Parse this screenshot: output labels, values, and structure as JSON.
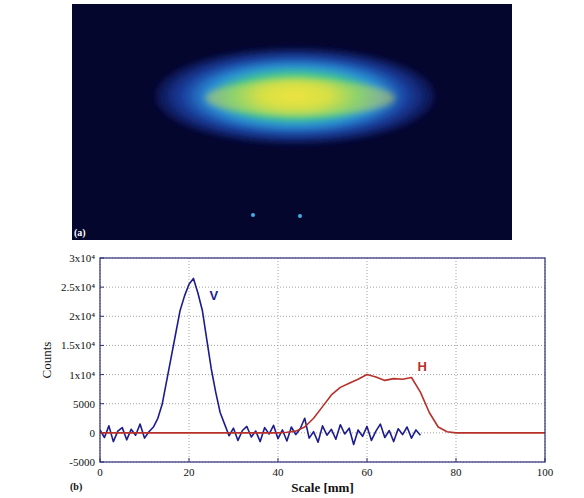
{
  "chart_data": {
    "type": "line",
    "xlabel": "Scale [mm]",
    "ylabel": "Counts",
    "annotations": [
      "(a)",
      "(b)"
    ],
    "xlim": [
      0,
      100
    ],
    "xticks": [
      0,
      20,
      40,
      60,
      80,
      100
    ],
    "ylim": [
      -5000,
      30000
    ],
    "yticks": [
      -5000,
      0,
      5000,
      {
        "value": 10000,
        "label": "1x10⁴"
      },
      {
        "value": 15000,
        "label": "1.5x10⁴"
      },
      {
        "value": 20000,
        "label": "2x10⁴"
      },
      {
        "value": 25000,
        "label": "2.5x10⁴"
      },
      {
        "value": 30000,
        "label": "3x10⁴"
      }
    ],
    "grid": true,
    "series": [
      {
        "name": "V",
        "color": "#1c1c8f",
        "x": [
          0,
          1,
          2,
          3,
          4,
          5,
          6,
          7,
          8,
          9,
          10,
          11,
          12,
          13,
          14,
          15,
          16,
          17,
          18,
          19,
          20,
          21,
          22,
          23,
          24,
          25,
          26,
          27,
          28,
          29,
          30,
          31,
          32,
          33,
          34,
          35,
          36,
          37,
          38,
          39,
          40,
          41,
          42,
          43,
          44,
          45,
          46,
          47,
          48,
          49,
          50,
          51,
          52,
          53,
          54,
          55,
          56,
          57,
          58,
          59,
          60,
          61,
          62,
          63,
          64,
          65,
          66,
          67,
          68,
          69,
          70,
          71,
          72
        ],
        "values": [
          500,
          -800,
          1200,
          -1500,
          300,
          900,
          -1200,
          600,
          -400,
          1500,
          -900,
          200,
          1000,
          2500,
          5000,
          9000,
          13000,
          17000,
          21000,
          23500,
          25500,
          26500,
          24000,
          21000,
          16000,
          11000,
          7000,
          3500,
          1500,
          -500,
          800,
          -1300,
          400,
          1100,
          -700,
          300,
          -1500,
          900,
          -200,
          1300,
          -1000,
          500,
          -1400,
          1000,
          -300,
          700,
          2500,
          -900,
          200,
          -1600,
          1200,
          -400,
          600,
          -1100,
          1400,
          -200,
          800,
          -2000,
          500,
          -600,
          1100,
          -1300,
          300,
          1500,
          -800,
          400,
          -1500,
          700,
          -300,
          1000,
          -900,
          500,
          -400
        ]
      },
      {
        "name": "H",
        "color": "#b8302a",
        "x": [
          0,
          2,
          4,
          6,
          8,
          10,
          12,
          14,
          16,
          18,
          20,
          22,
          24,
          26,
          28,
          30,
          32,
          34,
          36,
          38,
          40,
          42,
          44,
          46,
          48,
          50,
          52,
          54,
          56,
          58,
          60,
          62,
          64,
          66,
          68,
          70,
          72,
          74,
          76,
          78,
          80,
          82,
          84,
          86,
          88,
          90,
          92,
          94,
          96,
          98,
          100
        ],
        "values": [
          0,
          0,
          0,
          0,
          0,
          0,
          0,
          0,
          0,
          0,
          0,
          0,
          0,
          0,
          0,
          0,
          0,
          0,
          0,
          0,
          0,
          100,
          300,
          1000,
          2500,
          4500,
          6500,
          7800,
          8500,
          9200,
          10000,
          9600,
          9000,
          9300,
          9200,
          9500,
          7000,
          3500,
          1000,
          200,
          0,
          0,
          0,
          0,
          0,
          0,
          0,
          0,
          0,
          0,
          0
        ]
      }
    ]
  }
}
